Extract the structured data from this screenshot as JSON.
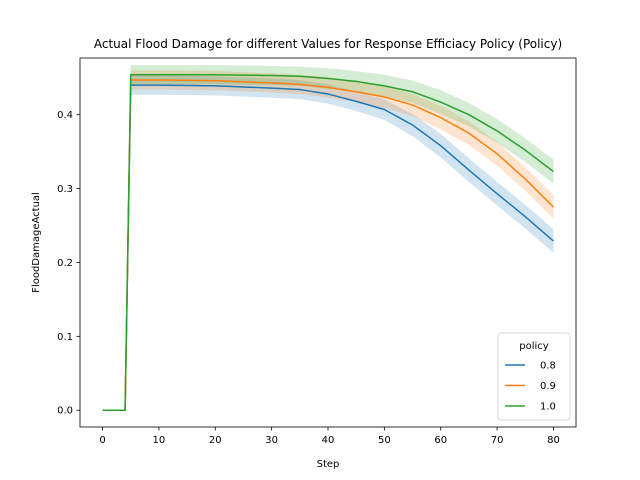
{
  "chart_data": {
    "type": "line",
    "title": "Actual Flood Damage for different Values for Response Efficiacy Policy (Policy)",
    "xlabel": "Step",
    "ylabel": "FloodDamageActual",
    "xlim": [
      -4,
      84
    ],
    "ylim": [
      -0.0227,
      0.4767
    ],
    "xticks": [
      0,
      10,
      20,
      30,
      40,
      50,
      60,
      70,
      80
    ],
    "yticks": [
      0.0,
      0.1,
      0.2,
      0.3,
      0.4
    ],
    "ytick_labels": [
      "0.0",
      "0.1",
      "0.2",
      "0.3",
      "0.4"
    ],
    "grid": false,
    "legend": {
      "title": "policy",
      "position": "lower-right"
    },
    "series": [
      {
        "name": "0.8",
        "color": "#1f77b4",
        "points": [
          [
            0,
            0
          ],
          [
            4,
            0
          ],
          [
            5,
            0.44
          ],
          [
            10,
            0.44
          ],
          [
            20,
            0.439
          ],
          [
            30,
            0.436
          ],
          [
            35,
            0.434
          ],
          [
            40,
            0.428
          ],
          [
            45,
            0.418
          ],
          [
            50,
            0.407
          ],
          [
            55,
            0.386
          ],
          [
            60,
            0.358
          ],
          [
            65,
            0.325
          ],
          [
            70,
            0.293
          ],
          [
            75,
            0.262
          ],
          [
            80,
            0.229
          ]
        ],
        "ci": [
          [
            0,
            0,
            0
          ],
          [
            4,
            0,
            0
          ],
          [
            5,
            0.427,
            0.453
          ],
          [
            10,
            0.427,
            0.453
          ],
          [
            20,
            0.426,
            0.452
          ],
          [
            30,
            0.423,
            0.449
          ],
          [
            35,
            0.421,
            0.447
          ],
          [
            40,
            0.415,
            0.441
          ],
          [
            45,
            0.405,
            0.431
          ],
          [
            50,
            0.393,
            0.421
          ],
          [
            55,
            0.371,
            0.401
          ],
          [
            60,
            0.342,
            0.374
          ],
          [
            65,
            0.309,
            0.341
          ],
          [
            70,
            0.277,
            0.309
          ],
          [
            75,
            0.246,
            0.278
          ],
          [
            80,
            0.213,
            0.245
          ]
        ]
      },
      {
        "name": "0.9",
        "color": "#ff7f0e",
        "points": [
          [
            0,
            0
          ],
          [
            4,
            0
          ],
          [
            5,
            0.447
          ],
          [
            10,
            0.447
          ],
          [
            20,
            0.446
          ],
          [
            30,
            0.443
          ],
          [
            35,
            0.441
          ],
          [
            40,
            0.437
          ],
          [
            45,
            0.431
          ],
          [
            50,
            0.424
          ],
          [
            55,
            0.413
          ],
          [
            60,
            0.396
          ],
          [
            65,
            0.375
          ],
          [
            70,
            0.347
          ],
          [
            75,
            0.313
          ],
          [
            80,
            0.275
          ]
        ],
        "ci": [
          [
            0,
            0,
            0
          ],
          [
            4,
            0,
            0
          ],
          [
            5,
            0.434,
            0.46
          ],
          [
            10,
            0.434,
            0.46
          ],
          [
            20,
            0.433,
            0.459
          ],
          [
            30,
            0.43,
            0.456
          ],
          [
            35,
            0.428,
            0.454
          ],
          [
            40,
            0.423,
            0.451
          ],
          [
            45,
            0.417,
            0.445
          ],
          [
            50,
            0.409,
            0.439
          ],
          [
            55,
            0.398,
            0.428
          ],
          [
            60,
            0.38,
            0.412
          ],
          [
            65,
            0.359,
            0.391
          ],
          [
            70,
            0.331,
            0.363
          ],
          [
            75,
            0.297,
            0.329
          ],
          [
            80,
            0.259,
            0.291
          ]
        ]
      },
      {
        "name": "1.0",
        "color": "#2ca02c",
        "points": [
          [
            0,
            0
          ],
          [
            4,
            0
          ],
          [
            5,
            0.454
          ],
          [
            10,
            0.454
          ],
          [
            20,
            0.454
          ],
          [
            30,
            0.453
          ],
          [
            35,
            0.452
          ],
          [
            40,
            0.449
          ],
          [
            45,
            0.445
          ],
          [
            50,
            0.439
          ],
          [
            55,
            0.431
          ],
          [
            60,
            0.417
          ],
          [
            65,
            0.4
          ],
          [
            70,
            0.378
          ],
          [
            75,
            0.352
          ],
          [
            80,
            0.323
          ]
        ],
        "ci": [
          [
            0,
            0,
            0
          ],
          [
            4,
            0,
            0
          ],
          [
            5,
            0.441,
            0.467
          ],
          [
            10,
            0.441,
            0.467
          ],
          [
            20,
            0.441,
            0.467
          ],
          [
            30,
            0.44,
            0.466
          ],
          [
            35,
            0.439,
            0.465
          ],
          [
            40,
            0.435,
            0.463
          ],
          [
            45,
            0.431,
            0.459
          ],
          [
            50,
            0.424,
            0.454
          ],
          [
            55,
            0.416,
            0.446
          ],
          [
            60,
            0.401,
            0.433
          ],
          [
            65,
            0.384,
            0.416
          ],
          [
            70,
            0.362,
            0.394
          ],
          [
            75,
            0.336,
            0.368
          ],
          [
            80,
            0.307,
            0.339
          ]
        ]
      }
    ]
  }
}
